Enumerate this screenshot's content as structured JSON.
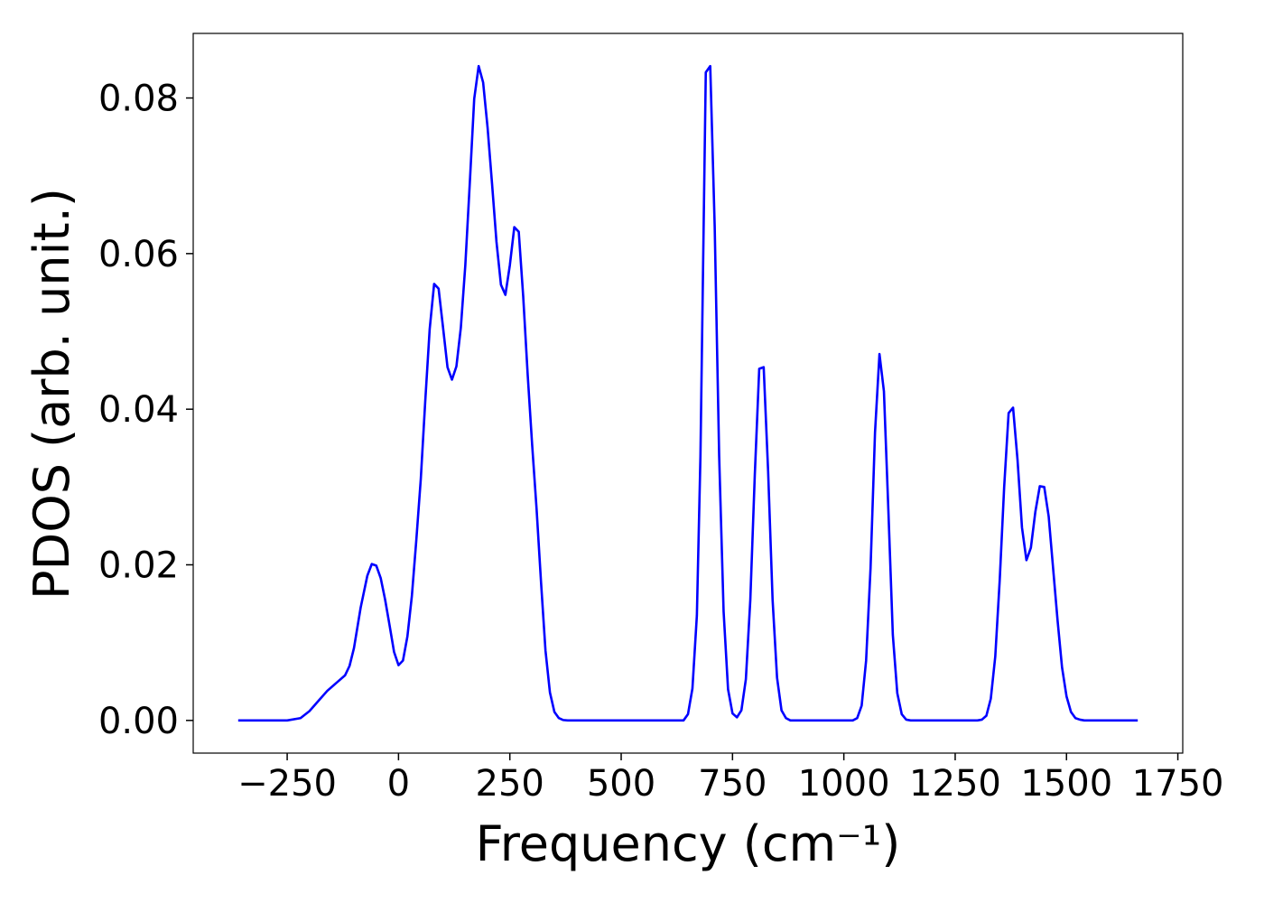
{
  "chart_data": {
    "type": "line",
    "xlabel": "Frequency (cm⁻¹)",
    "ylabel": "PDOS (arb. unit.)",
    "xlim": [
      -461,
      1761
    ],
    "ylim": [
      -0.0042,
      0.0883
    ],
    "xticks": [
      {
        "value": -250,
        "label": "−250"
      },
      0,
      250,
      500,
      750,
      1000,
      1250,
      1500,
      1750
    ],
    "yticks": [
      {
        "value": 0,
        "label": "0.00"
      },
      {
        "value": 0.02,
        "label": "0.02"
      },
      {
        "value": 0.04,
        "label": "0.04"
      },
      {
        "value": 0.06,
        "label": "0.06"
      },
      {
        "value": 0.08,
        "label": "0.08"
      }
    ],
    "grid": false,
    "x": [
      -360,
      -250,
      -220,
      -200,
      -180,
      -160,
      -140,
      -120,
      -110,
      -100,
      -85,
      -70,
      -60,
      -50,
      -40,
      -30,
      -20,
      -10,
      0,
      10,
      20,
      30,
      40,
      50,
      60,
      70,
      80,
      90,
      100,
      110,
      120,
      130,
      140,
      150,
      160,
      170,
      180,
      190,
      200,
      210,
      220,
      230,
      240,
      250,
      260,
      270,
      280,
      290,
      300,
      310,
      320,
      330,
      340,
      350,
      360,
      370,
      380,
      640,
      650,
      660,
      670,
      678,
      690,
      700,
      710,
      720,
      730,
      740,
      750,
      760,
      770,
      780,
      790,
      800,
      810,
      820,
      830,
      840,
      850,
      860,
      870,
      880,
      1020,
      1030,
      1040,
      1050,
      1060,
      1070,
      1080,
      1090,
      1100,
      1110,
      1120,
      1130,
      1140,
      1150,
      1300,
      1310,
      1320,
      1330,
      1340,
      1350,
      1360,
      1370,
      1380,
      1390,
      1400,
      1410,
      1420,
      1430,
      1440,
      1450,
      1460,
      1470,
      1480,
      1490,
      1500,
      1510,
      1520,
      1530,
      1540,
      1660
    ],
    "series": [
      {
        "name": "PDOS",
        "color": "#0000ff",
        "values": [
          0,
          0,
          0.0003,
          0.0012,
          0.0025,
          0.0038,
          0.0048,
          0.0058,
          0.007,
          0.0093,
          0.0145,
          0.0186,
          0.0201,
          0.0199,
          0.0183,
          0.0155,
          0.0122,
          0.0088,
          0.0071,
          0.0077,
          0.0108,
          0.016,
          0.0232,
          0.031,
          0.041,
          0.0503,
          0.0561,
          0.0555,
          0.0505,
          0.0454,
          0.0438,
          0.0455,
          0.0505,
          0.0585,
          0.069,
          0.0799,
          0.0841,
          0.082,
          0.0762,
          0.069,
          0.0615,
          0.056,
          0.0547,
          0.0585,
          0.0634,
          0.0628,
          0.0545,
          0.0445,
          0.0355,
          0.0272,
          0.0178,
          0.009,
          0.0036,
          0.0011,
          0.0003,
          5e-05,
          0,
          0,
          0.0008,
          0.0041,
          0.0135,
          0.034,
          0.0833,
          0.0841,
          0.0635,
          0.034,
          0.014,
          0.004,
          0.0009,
          0.0004,
          0.0013,
          0.0053,
          0.0155,
          0.0315,
          0.0452,
          0.0454,
          0.032,
          0.0155,
          0.0055,
          0.0013,
          0.0003,
          0,
          0,
          0.0003,
          0.0019,
          0.0077,
          0.0196,
          0.037,
          0.0471,
          0.0423,
          0.027,
          0.011,
          0.0035,
          0.0008,
          0.0001,
          0,
          0,
          0.0001,
          0.0006,
          0.0028,
          0.0082,
          0.018,
          0.03,
          0.0395,
          0.0402,
          0.0335,
          0.0248,
          0.0206,
          0.0222,
          0.0268,
          0.0301,
          0.03,
          0.0262,
          0.0195,
          0.0128,
          0.0068,
          0.0031,
          0.0011,
          0.0003,
          0.0001,
          0,
          0
        ]
      }
    ]
  }
}
